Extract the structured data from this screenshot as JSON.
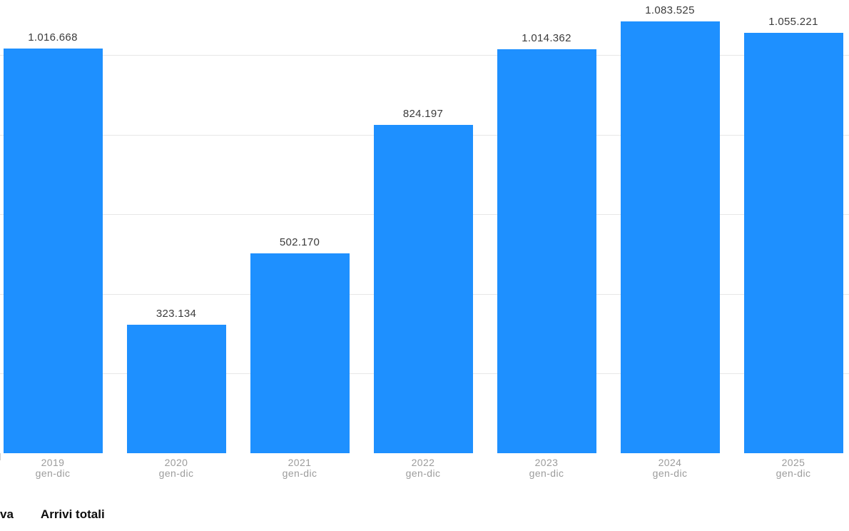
{
  "chart_data": {
    "type": "bar",
    "categories": [
      "2019",
      "2020",
      "2021",
      "2022",
      "2023",
      "2024",
      "2025"
    ],
    "period_label": "gen-dic",
    "values": [
      1016668,
      323134,
      502170,
      824197,
      1014362,
      1083525,
      1055221
    ],
    "value_labels": [
      "1.016.668",
      "323.134",
      "502.170",
      "824.197",
      "1.014.362",
      "1.083.525",
      "1.055.221"
    ],
    "ylim": [
      0,
      1138000
    ],
    "gridlines": [
      200000,
      400000,
      600000,
      800000,
      1000000
    ],
    "grid": "horizontal-only",
    "bar_color": "#1e90ff",
    "gridline_color": "#e7e7e7",
    "value_label_color": "#3b3b3b",
    "axis_label_color": "#9c9c9c",
    "legend_position": "bottom-left",
    "legend": {
      "partial_label": "va",
      "series_label": "Arrivi totali"
    }
  }
}
